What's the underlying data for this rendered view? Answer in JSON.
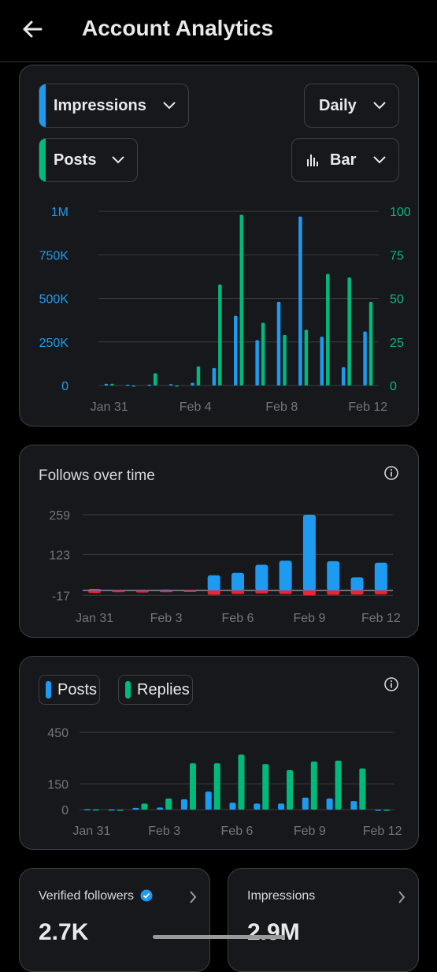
{
  "header": {
    "title": "Account Analytics"
  },
  "colors": {
    "blue": "#1d9bf0",
    "green": "#00ba7c",
    "red": "#f4212e",
    "text_dim": "#71767b"
  },
  "analytics": {
    "metric_dropdown": "Impressions",
    "period_dropdown": "Daily",
    "secondary_dropdown": "Posts",
    "charttype_dropdown": "Bar"
  },
  "follows": {
    "title": "Follows over time"
  },
  "posts_legend": {
    "posts": "Posts",
    "replies": "Replies"
  },
  "stats": {
    "verified_label": "Verified followers",
    "verified_value": "2.7K",
    "impressions_label": "Impressions",
    "impressions_value": "2.9M"
  },
  "chart_data": [
    {
      "type": "bar",
      "x": [
        "Jan 31",
        "Feb 1",
        "Feb 2",
        "Feb 3",
        "Feb 4",
        "Feb 5",
        "Feb 6",
        "Feb 7",
        "Feb 8",
        "Feb 9",
        "Feb 10",
        "Feb 11",
        "Feb 12"
      ],
      "xticks": [
        "Jan 31",
        "Feb 4",
        "Feb 8",
        "Feb 12"
      ],
      "series": [
        {
          "name": "Impressions",
          "axis": "left",
          "values": [
            10000,
            5000,
            5000,
            8000,
            15000,
            100000,
            400000,
            260000,
            480000,
            970000,
            280000,
            105000,
            310000
          ]
        },
        {
          "name": "Posts",
          "axis": "right",
          "values": [
            1,
            0,
            7,
            0,
            11,
            58,
            98,
            36,
            29,
            32,
            64,
            62,
            48
          ]
        }
      ],
      "y_left": {
        "ticks": [
          "0",
          "250K",
          "500K",
          "750K",
          "1M"
        ],
        "lim": [
          0,
          1000000
        ]
      },
      "y_right": {
        "ticks": [
          "0",
          "25",
          "50",
          "75",
          "100"
        ],
        "lim": [
          0,
          100
        ]
      },
      "grid": true
    },
    {
      "type": "bar",
      "title": "Follows over time",
      "x": [
        "Jan 31",
        "Feb 1",
        "Feb 2",
        "Feb 3",
        "Feb 4",
        "Feb 5",
        "Feb 6",
        "Feb 7",
        "Feb 8",
        "Feb 9",
        "Feb 10",
        "Feb 11",
        "Feb 12"
      ],
      "xticks": [
        "Jan 31",
        "Feb 3",
        "Feb 6",
        "Feb 9",
        "Feb 12"
      ],
      "series": [
        {
          "name": "Follows",
          "values": [
            5,
            1,
            2,
            3,
            1,
            52,
            60,
            88,
            102,
            259,
            100,
            45,
            95
          ]
        },
        {
          "name": "Unfollows",
          "values": [
            -8,
            -6,
            -7,
            -6,
            -5,
            -15,
            -12,
            -10,
            -12,
            -17,
            -15,
            -14,
            -13
          ]
        }
      ],
      "yticks": [
        "-17",
        "123",
        "259"
      ],
      "ylim": [
        -17,
        259
      ],
      "grid": true
    },
    {
      "type": "bar",
      "x": [
        "Jan 31",
        "Feb 1",
        "Feb 2",
        "Feb 3",
        "Feb 4",
        "Feb 5",
        "Feb 6",
        "Feb 7",
        "Feb 8",
        "Feb 9",
        "Feb 10",
        "Feb 11",
        "Feb 12"
      ],
      "xticks": [
        "Jan 31",
        "Feb 3",
        "Feb 6",
        "Feb 9",
        "Feb 12"
      ],
      "series": [
        {
          "name": "Posts",
          "values": [
            3,
            1,
            10,
            12,
            60,
            105,
            40,
            35,
            35,
            70,
            65,
            50,
            0
          ]
        },
        {
          "name": "Replies",
          "values": [
            1,
            0,
            35,
            65,
            270,
            270,
            320,
            265,
            230,
            280,
            285,
            240,
            0
          ]
        }
      ],
      "yticks": [
        "0",
        "150",
        "450"
      ],
      "ylim": [
        0,
        450
      ],
      "grid": true
    }
  ]
}
